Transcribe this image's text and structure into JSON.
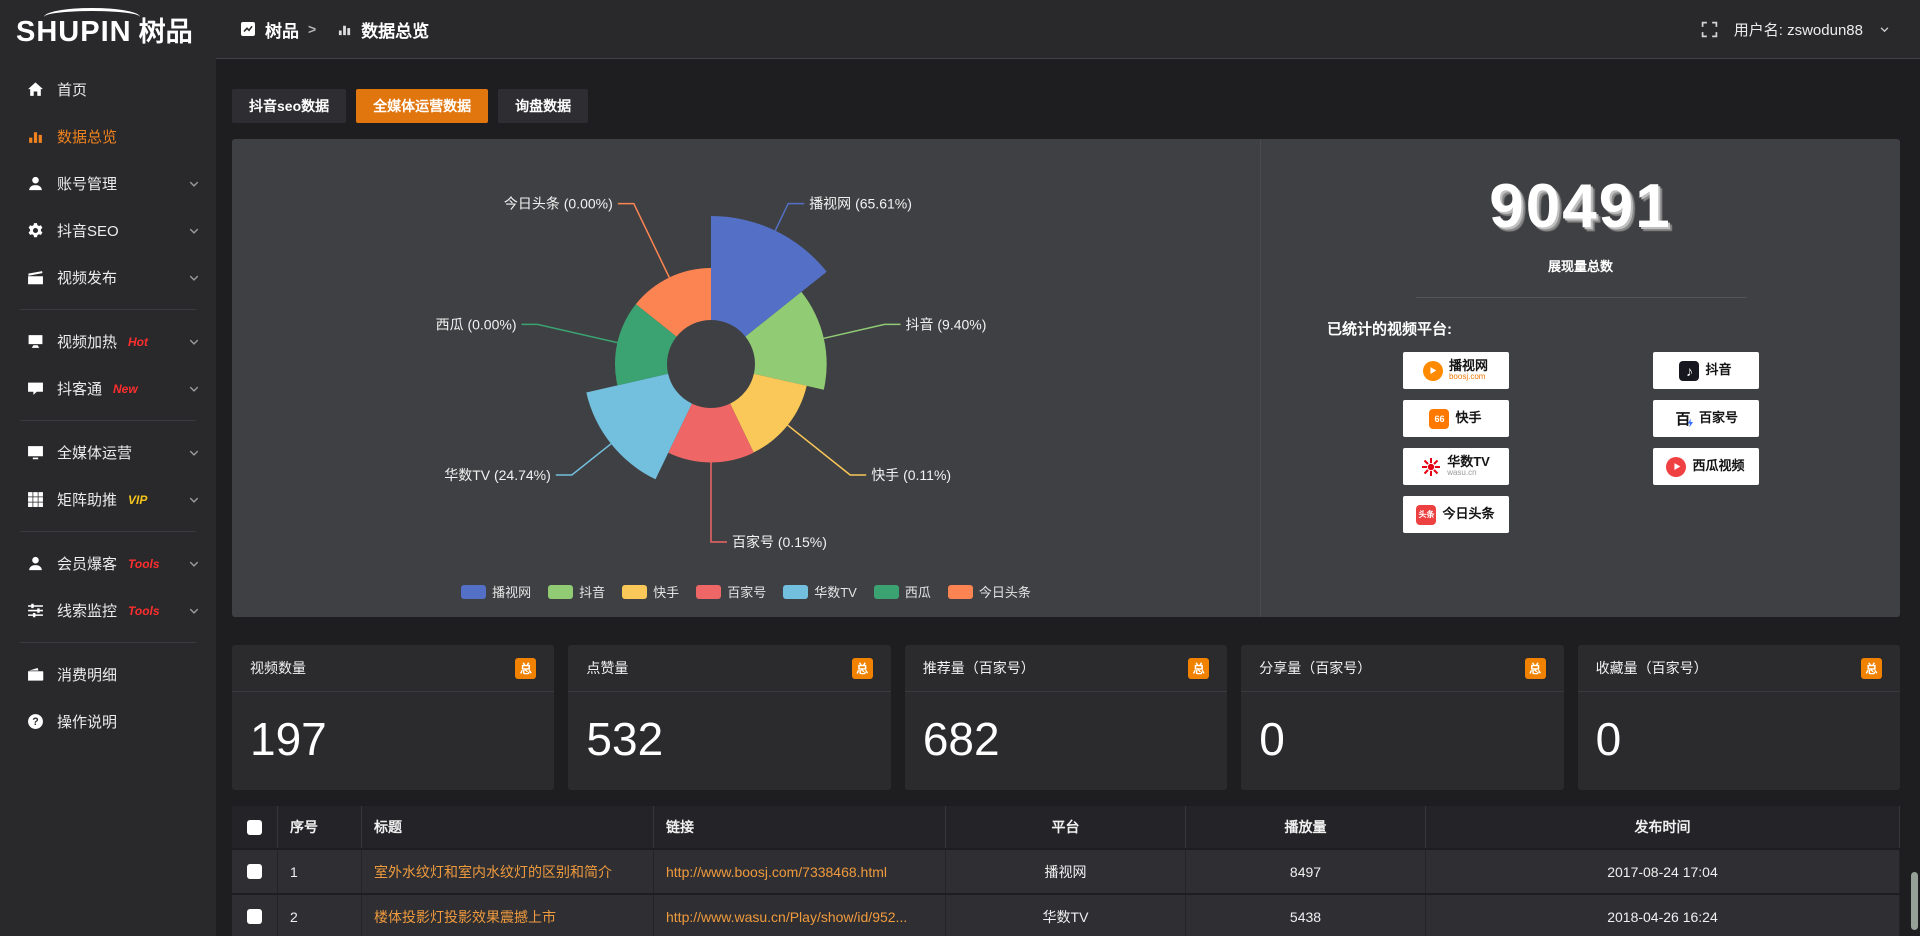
{
  "topbar": {
    "logo_text": "SHUPIN",
    "logo_cn": "树品",
    "breadcrumb": {
      "root": "树品",
      "separator": ">",
      "current": "数据总览"
    },
    "username": "用户名: zswodun88"
  },
  "sidebar": {
    "groups": [
      {
        "items": [
          {
            "icon": "home",
            "label": "首页"
          },
          {
            "icon": "chart",
            "label": "数据总览",
            "active": true
          },
          {
            "icon": "user",
            "label": "账号管理",
            "chevron": true
          },
          {
            "icon": "gear",
            "label": "抖音SEO",
            "chevron": true
          },
          {
            "icon": "video",
            "label": "视频发布",
            "chevron": true
          }
        ]
      },
      {
        "items": [
          {
            "icon": "heat",
            "label": "视频加热",
            "badge": "Hot",
            "badge_color": "#ff2e2e",
            "chevron": true
          },
          {
            "icon": "chat",
            "label": "抖客通",
            "badge": "New",
            "badge_color": "#ff2e2e",
            "chevron": true
          }
        ]
      },
      {
        "items": [
          {
            "icon": "media",
            "label": "全媒体运营",
            "chevron": true
          },
          {
            "icon": "grid",
            "label": "矩阵助推",
            "badge": "VIP",
            "badge_color": "#f6c51c",
            "chevron": true
          }
        ]
      },
      {
        "items": [
          {
            "icon": "member",
            "label": "会员爆客",
            "badge": "Tools",
            "badge_color": "#ff2e2e",
            "chevron": true
          },
          {
            "icon": "filter",
            "label": "线索监控",
            "badge": "Tools",
            "badge_color": "#ff2e2e",
            "chevron": true
          }
        ]
      },
      {
        "items": [
          {
            "icon": "wallet",
            "label": "消费明细"
          },
          {
            "icon": "question",
            "label": "操作说明"
          }
        ]
      }
    ]
  },
  "tabs": [
    {
      "label": "抖音seo数据"
    },
    {
      "label": "全媒体运营数据",
      "active": true
    },
    {
      "label": "询盘数据"
    }
  ],
  "chart_data": {
    "type": "pie",
    "style": "rose",
    "title": "",
    "label_format": "{name} ({pct}%)",
    "legend_position": "bottom",
    "items": [
      {
        "name": "播视网",
        "pct": 65.61,
        "color": "#5470c6"
      },
      {
        "name": "抖音",
        "pct": 9.4,
        "color": "#91cc75"
      },
      {
        "name": "快手",
        "pct": 0.11,
        "color": "#fac858"
      },
      {
        "name": "百家号",
        "pct": 0.15,
        "color": "#ee6666"
      },
      {
        "name": "华数TV",
        "pct": 24.74,
        "color": "#73c0de"
      },
      {
        "name": "西瓜",
        "pct": 0.0,
        "color": "#3ba272"
      },
      {
        "name": "今日头条",
        "pct": 0.0,
        "color": "#fc8452"
      }
    ]
  },
  "summary": {
    "total_value": "90491",
    "total_label": "展现量总数",
    "platforms_label": "已统计的视频平台:",
    "platforms": [
      {
        "name": "播视网",
        "sub": "boosj.com",
        "sub_color": "#f07800",
        "icon": "boosj"
      },
      {
        "name": "抖音",
        "icon": "douyin"
      },
      {
        "name": "快手",
        "icon": "kuaishou"
      },
      {
        "name": "百家号",
        "icon": "baijiahao"
      },
      {
        "name": "华数TV",
        "sub": "wasu.cn",
        "sub_color": "#9a9a9a",
        "icon": "wasu"
      },
      {
        "name": "西瓜视频",
        "icon": "xigua"
      },
      {
        "name": "今日头条",
        "icon": "toutiao"
      }
    ]
  },
  "stat_cards": [
    {
      "title": "视频数量",
      "badge": "总",
      "value": "197"
    },
    {
      "title": "点赞量",
      "badge": "总",
      "value": "532"
    },
    {
      "title": "推荐量（百家号）",
      "badge": "总",
      "value": "682"
    },
    {
      "title": "分享量（百家号）",
      "badge": "总",
      "value": "0"
    },
    {
      "title": "收藏量（百家号）",
      "badge": "总",
      "value": "0"
    }
  ],
  "table": {
    "headers": [
      "",
      "序号",
      "标题",
      "链接",
      "平台",
      "播放量",
      "发布时间"
    ],
    "rows": [
      {
        "index": "1",
        "title": "室外水纹灯和室内水纹灯的区别和简介",
        "link": "http://www.boosj.com/7338468.html",
        "platform": "播视网",
        "views": "8497",
        "time": "2017-08-24 17:04"
      },
      {
        "index": "2",
        "title": "楼体投影灯投影效果震撼上市",
        "link": "http://www.wasu.cn/Play/show/id/952...",
        "platform": "华数TV",
        "views": "5438",
        "time": "2018-04-26 16:24"
      }
    ]
  }
}
